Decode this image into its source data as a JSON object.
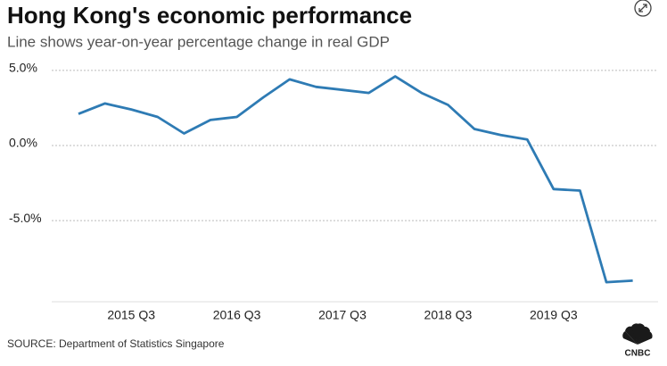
{
  "chart_data": {
    "type": "line",
    "title": "Hong Kong's economic performance",
    "subtitle": "Line shows year-on-year percentage change in real GDP",
    "source": "SOURCE: Department of Statistics Singapore",
    "logo": "CNBC",
    "categories": [
      null,
      null,
      "2015 Q3",
      null,
      null,
      null,
      "2016 Q3",
      null,
      null,
      null,
      "2017 Q3",
      null,
      null,
      null,
      "2018 Q3",
      null,
      null,
      null,
      "2019 Q3",
      null,
      null,
      null
    ],
    "series": [
      {
        "name": "Real GDP YoY change",
        "color": "#2e7bb4",
        "values": [
          2.1,
          2.8,
          2.4,
          1.9,
          0.8,
          1.7,
          1.9,
          3.2,
          4.4,
          3.9,
          3.7,
          3.5,
          4.6,
          3.5,
          2.7,
          1.1,
          0.7,
          0.4,
          -2.9,
          -3.0,
          -9.1,
          -9.0
        ]
      }
    ],
    "ylim": [
      -10.4,
      6
    ],
    "yticks": [
      {
        "value": -5,
        "label": "-5.0%"
      },
      {
        "value": 0,
        "label": "0.0%"
      },
      {
        "value": 5,
        "label": "5.0%"
      }
    ],
    "grid": true
  }
}
